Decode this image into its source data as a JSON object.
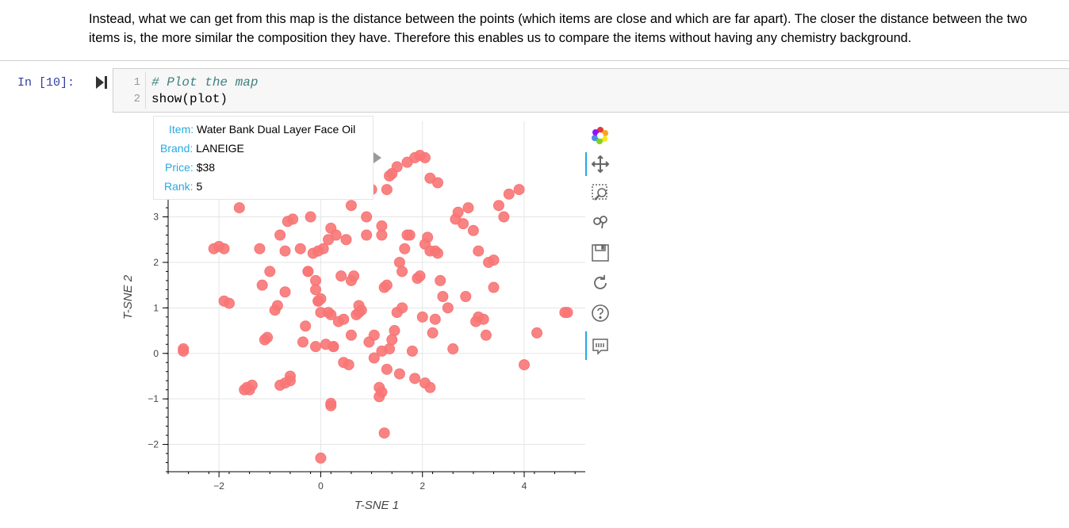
{
  "markdown": {
    "text": "Instead, what we can get from this map is the distance between the points (which items are close and which are far apart). The closer the distance between the two items is, the more similar the composition they have. Therefore this enables us to compare the items without having any chemistry background."
  },
  "cell": {
    "prompt": "In [10]:",
    "lines": [
      {
        "num": "1",
        "text": "# Plot the map",
        "kind": "comment"
      },
      {
        "num": "2",
        "text": "show(plot)",
        "kind": "normal"
      }
    ]
  },
  "tooltip": {
    "item_label": "Item:",
    "item_value": "Water Bank Dual Layer Face Oil",
    "brand_label": "Brand:",
    "brand_value": "LANEIGE",
    "price_label": "Price:",
    "price_value": "$38",
    "rank_label": "Rank:",
    "rank_value": "5"
  },
  "toolbar": {
    "icons": [
      "bokeh-logo-icon",
      "pan-icon",
      "box-zoom-icon",
      "wheel-zoom-icon",
      "save-icon",
      "reset-icon",
      "help-icon",
      "hover-icon"
    ]
  },
  "colors": {
    "point": "#f87575",
    "grid": "#e5e5e5",
    "accent": "#26aae1"
  },
  "chart_data": {
    "type": "scatter",
    "xlabel": "T-SNE 1",
    "ylabel": "T-SNE 2",
    "xlim": [
      -3.0,
      5.2
    ],
    "ylim": [
      -2.6,
      5.1
    ],
    "xticks": [
      -2,
      0,
      2,
      4
    ],
    "yticks": [
      -2,
      -1,
      0,
      1,
      2,
      3
    ],
    "xtick_labels": [
      "−2",
      "0",
      "2",
      "4"
    ],
    "ytick_labels": [
      "−2",
      "−1",
      "0",
      "1",
      "2",
      "3"
    ],
    "grid": true,
    "x": [
      -2.7,
      -2.7,
      -2.1,
      -2.0,
      -1.9,
      -1.9,
      -1.8,
      -1.6,
      -1.5,
      -1.35,
      -1.2,
      -1.15,
      -1.1,
      -1.05,
      -1.0,
      -0.9,
      -0.85,
      -0.8,
      -0.7,
      -0.7,
      -0.65,
      -0.6,
      -0.6,
      -0.55,
      -0.4,
      -0.35,
      -0.3,
      -0.25,
      -0.25,
      -0.2,
      -0.15,
      -0.1,
      -0.1,
      -0.1,
      -0.05,
      -0.05,
      0.0,
      0.0,
      0.05,
      0.1,
      0.15,
      0.2,
      0.2,
      0.25,
      0.3,
      0.35,
      0.4,
      0.45,
      0.5,
      0.55,
      0.6,
      0.65,
      0.7,
      0.75,
      0.75,
      0.8,
      0.9,
      0.95,
      1.05,
      1.15,
      1.15,
      1.2,
      1.2,
      1.25,
      1.3,
      1.35,
      1.4,
      1.45,
      1.5,
      1.55,
      1.6,
      1.6,
      1.65,
      1.7,
      1.75,
      1.8,
      1.9,
      1.95,
      2.0,
      2.05,
      2.1,
      2.15,
      2.2,
      2.25,
      2.3,
      2.35,
      2.4,
      2.5,
      2.6,
      2.65,
      2.7,
      2.8,
      2.9,
      3.0,
      3.1,
      3.2,
      3.3,
      3.4,
      3.5,
      3.6,
      3.7,
      3.9,
      4.0,
      1.3,
      1.35,
      1.4,
      1.5,
      1.7,
      1.85,
      1.95,
      0.85,
      0.55,
      0.35,
      0.6,
      0.9,
      1.0,
      2.05,
      2.15,
      2.3,
      0.25,
      0.15,
      0.45,
      0.6,
      1.05,
      1.2,
      1.3,
      1.55,
      2.25,
      2.85,
      3.05,
      3.25,
      3.4,
      0.0,
      -0.7,
      -0.8,
      -1.4,
      -1.45,
      0.2,
      0.2,
      1.2,
      1.25,
      1.85,
      2.05,
      2.15,
      3.1,
      4.25,
      4.8,
      4.85,
      -0.05
    ],
    "y": [
      0.05,
      0.1,
      2.3,
      2.35,
      2.3,
      1.15,
      1.1,
      3.2,
      -0.8,
      -0.7,
      2.3,
      1.5,
      0.3,
      0.35,
      1.8,
      0.95,
      1.05,
      2.6,
      2.25,
      1.35,
      2.9,
      -0.6,
      -0.5,
      2.95,
      2.3,
      0.25,
      0.6,
      1.8,
      1.8,
      3.0,
      2.2,
      0.15,
      1.4,
      1.6,
      2.25,
      1.15,
      0.9,
      -2.3,
      2.3,
      0.2,
      2.5,
      2.75,
      0.85,
      0.15,
      2.6,
      0.7,
      1.7,
      -0.2,
      2.5,
      -0.25,
      1.6,
      1.7,
      0.85,
      0.9,
      1.05,
      0.95,
      2.6,
      0.25,
      -0.1,
      -0.75,
      -0.95,
      2.6,
      2.8,
      1.45,
      1.5,
      0.1,
      0.3,
      0.5,
      0.9,
      2.0,
      1.8,
      1.0,
      2.3,
      2.6,
      2.6,
      0.05,
      1.65,
      1.7,
      0.8,
      2.4,
      2.55,
      2.25,
      0.45,
      2.25,
      2.2,
      1.6,
      1.25,
      1.0,
      0.1,
      2.95,
      3.1,
      2.85,
      3.2,
      2.7,
      0.8,
      0.75,
      2.0,
      2.05,
      3.25,
      3.0,
      3.5,
      3.6,
      -0.25,
      3.6,
      3.9,
      3.95,
      4.1,
      4.2,
      4.3,
      4.35,
      3.7,
      3.65,
      3.8,
      3.25,
      3.0,
      3.6,
      4.3,
      3.85,
      3.75,
      0.15,
      0.9,
      0.75,
      0.4,
      0.4,
      0.05,
      -0.35,
      -0.45,
      0.75,
      1.25,
      0.7,
      0.4,
      1.45,
      1.2,
      -0.65,
      -0.7,
      -0.8,
      -0.75,
      -1.1,
      -1.15,
      -0.85,
      -1.75,
      -0.55,
      -0.65,
      -0.75,
      2.25,
      0.45,
      0.9,
      0.9,
      1.15
    ]
  }
}
